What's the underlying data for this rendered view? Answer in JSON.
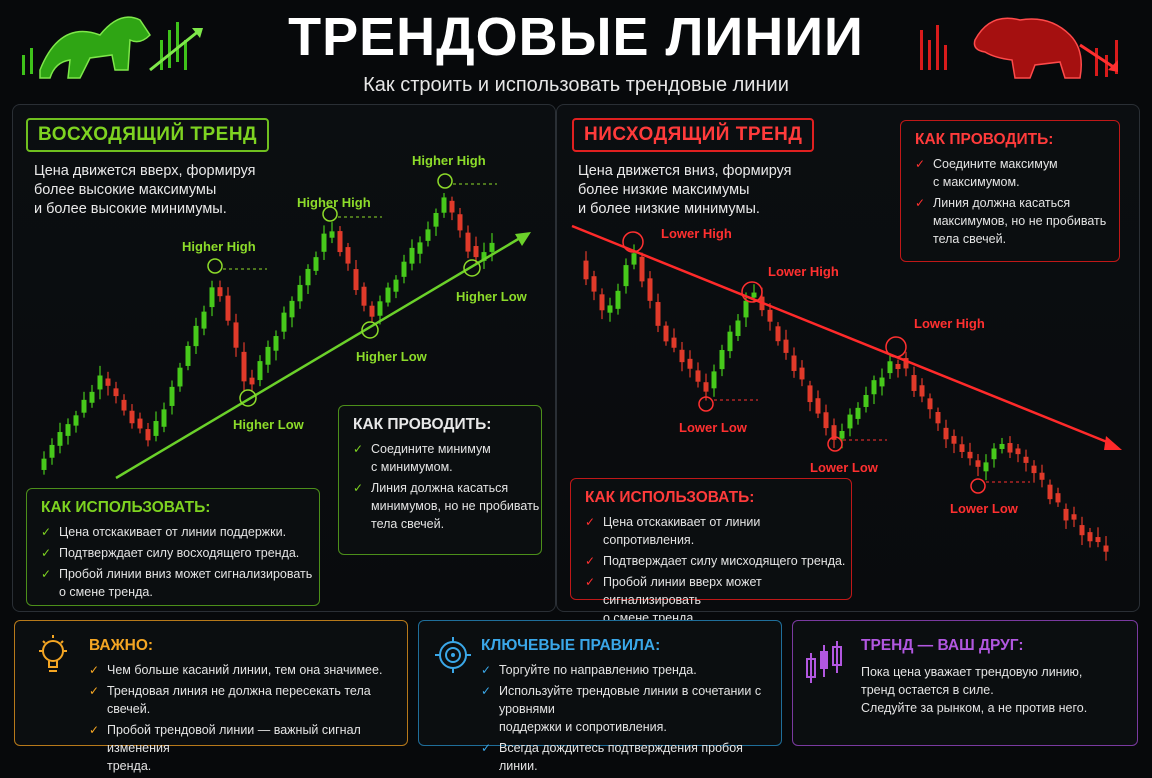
{
  "header": {
    "title": "ТРЕНДОВЫЕ ЛИНИИ",
    "subtitle": "Как строить и использовать трендовые линии"
  },
  "uptrend": {
    "badge": "ВОСХОДЯЩИЙ ТРЕНД",
    "desc": [
      "Цена движется вверх, формируя",
      "более высокие максимумы",
      "и более высокие минимумы."
    ],
    "labels": {
      "hh1": "Higher High",
      "hh2": "Higher High",
      "hh3": "Higher High",
      "hl1": "Higher Low",
      "hl2": "Higher Low",
      "hl3": "Higher Low"
    },
    "how_to_draw": {
      "title": "КАК ПРОВОДИТЬ:",
      "items": [
        "Соедините минимум\nс минимумом.",
        "Линия должна касаться\nминимумов, но не пробивать\nтела свечей."
      ]
    },
    "how_to_use": {
      "title": "КАК ИСПОЛЬЗОВАТЬ:",
      "items": [
        "Цена отскакивает от линии поддержки.",
        "Подтверждает силу восходящего тренда.",
        "Пробой линии вниз может сигнализировать\nо смене тренда."
      ]
    }
  },
  "downtrend": {
    "badge": "НИСХОДЯЩИЙ ТРЕНД",
    "desc": [
      "Цена движется вниз, формируя",
      "более низкие максимумы",
      "и более низкие минимумы."
    ],
    "labels": {
      "lh1": "Lower High",
      "lh2": "Lower High",
      "lh3": "Lower High",
      "ll1": "Lower Low",
      "ll2": "Lower Low",
      "ll3": "Lower Low"
    },
    "how_to_draw": {
      "title": "КАК ПРОВОДИТЬ:",
      "items": [
        "Соедините максимум\nс максимумом.",
        "Линия должна касаться\nмаксимумов, но не пробивать\nтела свечей."
      ]
    },
    "how_to_use": {
      "title": "КАК ИСПОЛЬЗОВАТЬ:",
      "items": [
        "Цена отскакивает от линии сопротивления.",
        "Подтверждает силу мисходящего тренда.",
        "Пробой линии вверх может сигнализировать\nо смене тренда."
      ]
    }
  },
  "important": {
    "title": "ВАЖНО:",
    "items": [
      "Чем больше касаний линии, тем она значимее.",
      "Трендовая линия не должна пересекать тела свечей.",
      "Пробой трендовой линии — важный сигнал изменения\nтренда."
    ]
  },
  "rules": {
    "title": "КЛЮЧЕВЫЕ ПРАВИЛА:",
    "items": [
      "Торгуйте по направлению тренда.",
      "Используйте трендовые линии в сочетании с уровнями\nподдержки и сопротивления.",
      "Всегда дождитесь подтверждения пробоя линии."
    ]
  },
  "friend": {
    "title": "ТРЕНД — ВАШ ДРУГ:",
    "lines": [
      "Пока цена уважает трендовую линию,",
      "тренд остается в силе.",
      "Следуйте за рынком, а не против него."
    ]
  },
  "colors": {
    "green": "#7ed321",
    "red": "#ff3030",
    "orange": "#f5a623",
    "blue": "#3aa7e8",
    "purple": "#b257e0"
  },
  "icons": {
    "bull": "bull-icon",
    "bear": "bear-icon",
    "bulb": "lightbulb-icon",
    "target": "target-icon",
    "candles": "candles-icon"
  }
}
